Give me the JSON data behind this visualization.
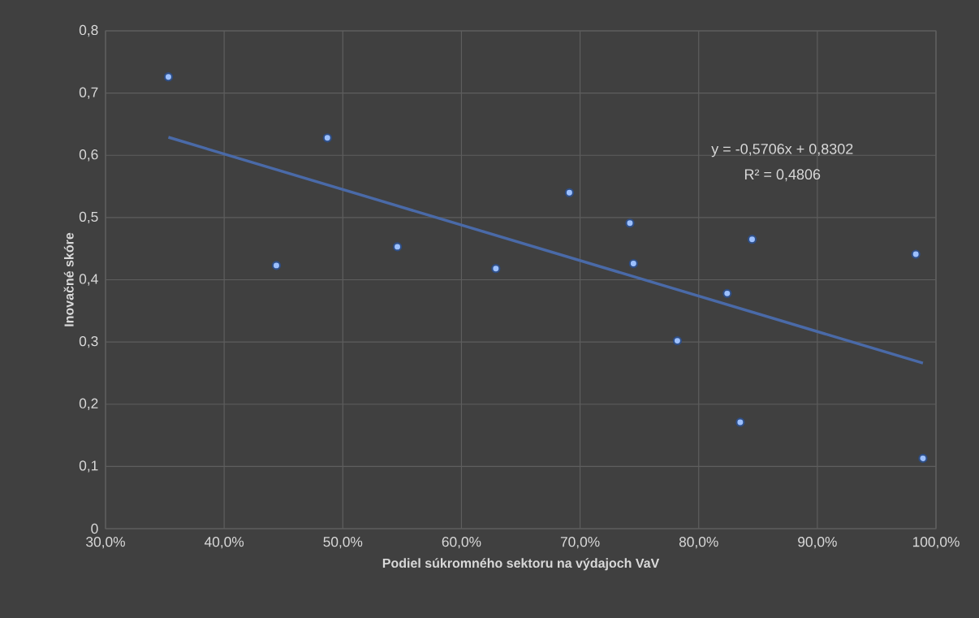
{
  "chart_data": {
    "type": "scatter",
    "xlabel": "Podiel súkromného sektoru na výdajoch VaV",
    "ylabel": "Inovačné skóre",
    "series": [
      {
        "color": "#9cc0ff",
        "x": [
          0.353,
          0.444,
          0.487,
          0.546,
          0.629,
          0.691,
          0.742,
          0.745,
          0.782,
          0.824,
          0.835,
          0.845,
          0.983,
          0.989
        ],
        "values": [
          0.726,
          0.423,
          0.628,
          0.453,
          0.418,
          0.54,
          0.491,
          0.426,
          0.302,
          0.378,
          0.171,
          0.465,
          0.441,
          0.113
        ]
      },
      {
        "type": "line",
        "color": "#4a6aa8",
        "line_style": "solid",
        "x": [
          0.353,
          0.989
        ],
        "values": [
          0.629,
          0.266
        ]
      }
    ],
    "xlim": [
      0.3,
      1.0
    ],
    "xticks": [
      {
        "value": 0.3,
        "label": "30,0%"
      },
      {
        "value": 0.4,
        "label": "40,0%"
      },
      {
        "value": 0.5,
        "label": "50,0%"
      },
      {
        "value": 0.6,
        "label": "60,0%"
      },
      {
        "value": 0.7,
        "label": "70,0%"
      },
      {
        "value": 0.8,
        "label": "80,0%"
      },
      {
        "value": 0.9,
        "label": "90,0%"
      },
      {
        "value": 1.0,
        "label": "100,0%"
      }
    ],
    "ylim": [
      0,
      0.8
    ],
    "yticks": [
      0,
      {
        "value": 0.1,
        "label": "0,1"
      },
      {
        "value": 0.2,
        "label": "0,2"
      },
      {
        "value": 0.3,
        "label": "0,3"
      },
      {
        "value": 0.4,
        "label": "0,4"
      },
      {
        "value": 0.5,
        "label": "0,5"
      },
      {
        "value": 0.6,
        "label": "0,6"
      },
      {
        "value": 0.7,
        "label": "0,7"
      },
      {
        "value": 0.8,
        "label": "0,8"
      }
    ],
    "grid": true,
    "annotations": [
      "y = -0,5706x + 0,8302",
      "R² = 0,4806"
    ]
  }
}
